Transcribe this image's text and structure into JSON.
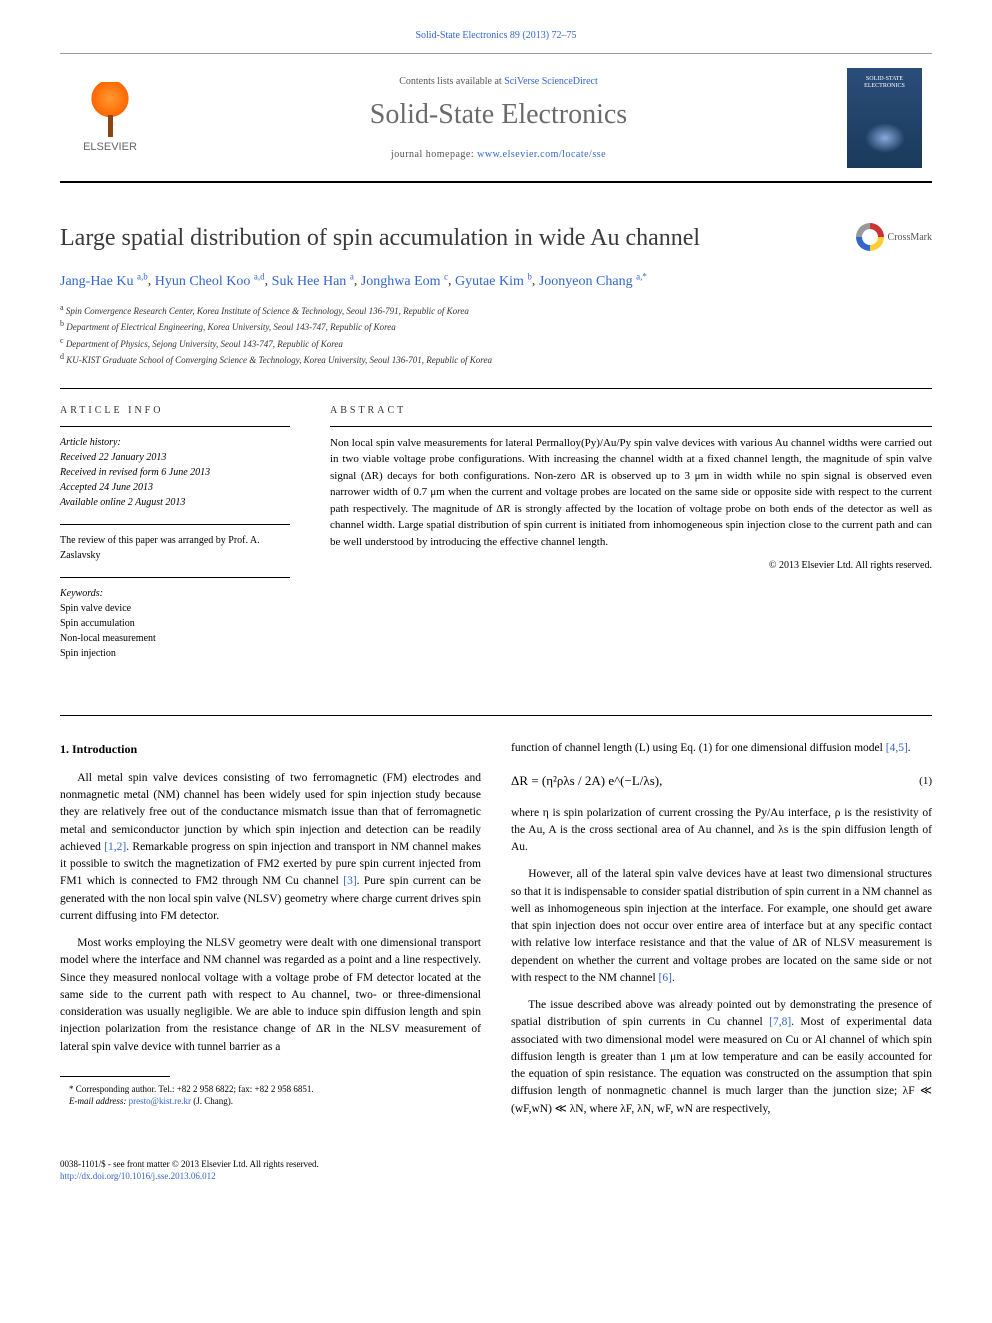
{
  "journal_ref": "Solid-State Electronics 89 (2013) 72–75",
  "header": {
    "contents_line_pre": "Contents lists available at ",
    "contents_line_link": "SciVerse ScienceDirect",
    "journal_name": "Solid-State Electronics",
    "homepage_pre": "journal homepage: ",
    "homepage_url": "www.elsevier.com/locate/sse",
    "elsevier_label": "ELSEVIER",
    "cover_text": "SOLID-STATE ELECTRONICS"
  },
  "article": {
    "title": "Large spatial distribution of spin accumulation in wide Au channel",
    "crossmark_label": "CrossMark",
    "authors_html": "Jang-Hae Ku <sup>a,b</sup>, Hyun Cheol Koo <sup>a,d</sup>, Suk Hee Han <sup>a</sup>, Jonghwa Eom <sup>c</sup>, Gyutae Kim <sup>b</sup>, Joonyeon Chang <sup>a,*</sup>",
    "affiliations": [
      "a Spin Convergence Research Center, Korea Institute of Science & Technology, Seoul 136-791, Republic of Korea",
      "b Department of Electrical Engineering, Korea University, Seoul 143-747, Republic of Korea",
      "c Department of Physics, Sejong University, Seoul 143-747, Republic of Korea",
      "d KU-KIST Graduate School of Converging Science & Technology, Korea University, Seoul 136-701, Republic of Korea"
    ]
  },
  "info": {
    "heading": "ARTICLE INFO",
    "history_label": "Article history:",
    "history": [
      "Received 22 January 2013",
      "Received in revised form 6 June 2013",
      "Accepted 24 June 2013",
      "Available online 2 August 2013"
    ],
    "review_note": "The review of this paper was arranged by Prof. A. Zaslavsky",
    "keywords_label": "Keywords:",
    "keywords": [
      "Spin valve device",
      "Spin accumulation",
      "Non-local measurement",
      "Spin injection"
    ]
  },
  "abstract": {
    "heading": "ABSTRACT",
    "text": "Non local spin valve measurements for lateral Permalloy(Py)/Au/Py spin valve devices with various Au channel widths were carried out in two viable voltage probe configurations. With increasing the channel width at a fixed channel length, the magnitude of spin valve signal (ΔR) decays for both configurations. Non-zero ΔR is observed up to 3 μm in width while no spin signal is observed even narrower width of 0.7 μm when the current and voltage probes are located on the same side or opposite side with respect to the current path respectively. The magnitude of ΔR is strongly affected by the location of voltage probe on both ends of the detector as well as channel width. Large spatial distribution of spin current is initiated from inhomogeneous spin injection close to the current path and can be well understood by introducing the effective channel length.",
    "copyright": "© 2013 Elsevier Ltd. All rights reserved."
  },
  "body": {
    "section_heading": "1. Introduction",
    "col1": [
      "All metal spin valve devices consisting of two ferromagnetic (FM) electrodes and nonmagnetic metal (NM) channel has been widely used for spin injection study because they are relatively free out of the conductance mismatch issue than that of ferromagnetic metal and semiconductor junction by which spin injection and detection can be readily achieved [1,2]. Remarkable progress on spin injection and transport in NM channel makes it possible to switch the magnetization of FM2 exerted by pure spin current injected from FM1 which is connected to FM2 through NM Cu channel [3]. Pure spin current can be generated with the non local spin valve (NLSV) geometry where charge current drives spin current diffusing into FM detector.",
      "Most works employing the NLSV geometry were dealt with one dimensional transport model where the interface and NM channel was regarded as a point and a line respectively. Since they measured nonlocal voltage with a voltage probe of FM detector located at the same side to the current path with respect to Au channel, two- or three-dimensional consideration was usually negligible. We are able to induce spin diffusion length and spin injection polarization from the resistance change of ΔR in the NLSV measurement of lateral spin valve device with tunnel barrier as a"
    ],
    "col2_pre_eq": "function of channel length (L) using Eq. (1) for one dimensional diffusion model [4,5].",
    "equation": "ΔR = (η²ρλs / 2A) e^(−L/λs),",
    "eq_num": "(1)",
    "col2_post_eq": [
      "where η is spin polarization of current crossing the Py/Au interface, ρ is the resistivity of the Au, A is the cross sectional area of Au channel, and λs is the spin diffusion length of Au.",
      "However, all of the lateral spin valve devices have at least two dimensional structures so that it is indispensable to consider spatial distribution of spin current in a NM channel as well as inhomogeneous spin injection at the interface. For example, one should get aware that spin injection does not occur over entire area of interface but at any specific contact with relative low interface resistance and that the value of ΔR of NLSV measurement is dependent on whether the current and voltage probes are located on the same side or not with respect to the NM channel [6].",
      "The issue described above was already pointed out by demonstrating the presence of spatial distribution of spin currents in Cu channel [7,8]. Most of experimental data associated with two dimensional model were measured on Cu or Al channel of which spin diffusion length is greater than 1 μm at low temperature and can be easily accounted for the equation of spin resistance. The equation was constructed on the assumption that spin diffusion length of nonmagnetic channel is much larger than the junction size; λF ≪ (wF,wN) ≪ λN, where λF, λN, wF, wN are respectively,"
    ]
  },
  "footnote": {
    "corresponding": "* Corresponding author. Tel.: +82 2 958 6822; fax: +82 2 958 6851.",
    "email_label": "E-mail address:",
    "email": "presto@kist.re.kr",
    "email_name": "(J. Chang)."
  },
  "footer": {
    "issn": "0038-1101/$ - see front matter © 2013 Elsevier Ltd. All rights reserved.",
    "doi": "http://dx.doi.org/10.1016/j.sse.2013.06.012"
  },
  "colors": {
    "link": "#3366cc",
    "body_text": "#000000",
    "gray_text": "#6b6b6b",
    "elsevier_orange": "#ff6600"
  }
}
